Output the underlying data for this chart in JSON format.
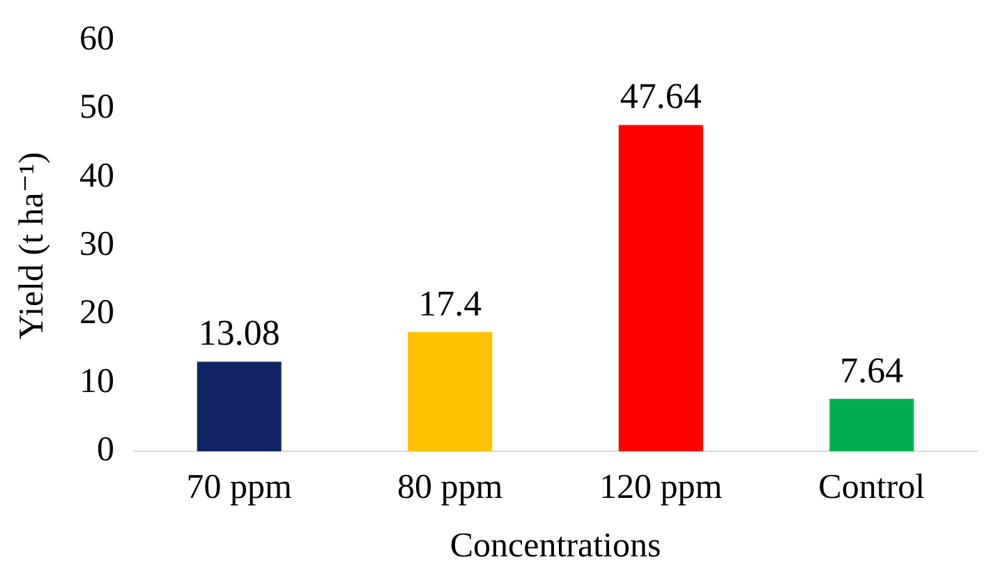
{
  "chart_data": {
    "type": "bar",
    "xlabel": "Concentrations",
    "ylabel": "Yield (t ha⁻¹)",
    "categories": [
      "70 ppm",
      "80 ppm",
      "120 ppm",
      "Control"
    ],
    "values": [
      13.08,
      17.4,
      47.64,
      7.64
    ],
    "colors": [
      "#0f2464",
      "#ffc000",
      "#ff0000",
      "#00b050"
    ],
    "ylim": [
      0,
      60
    ],
    "yticks": [
      0,
      10,
      20,
      30,
      40,
      50,
      60
    ],
    "grid": false,
    "data_labels": true
  }
}
